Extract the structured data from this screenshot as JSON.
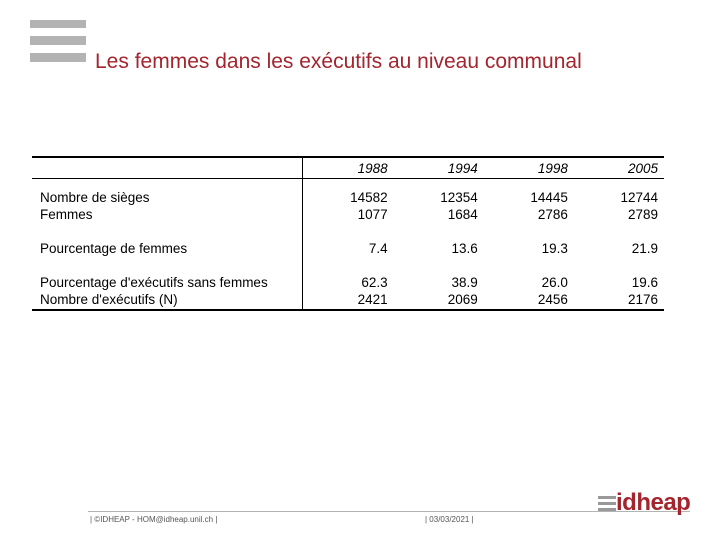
{
  "slide": {
    "title": "Les femmes dans les exécutifs au niveau communal"
  },
  "table": {
    "years": [
      "1988",
      "1994",
      "1998",
      "2005"
    ],
    "rows": [
      {
        "label": "Nombre de sièges",
        "values": [
          "14582",
          "12354",
          "14445",
          "12744"
        ]
      },
      {
        "label": "Femmes",
        "values": [
          "1077",
          "1684",
          "2786",
          "2789"
        ]
      },
      {
        "label": "Pourcentage de femmes",
        "values": [
          "7.4",
          "13.6",
          "19.3",
          "21.9"
        ]
      },
      {
        "label": "Pourcentage d'exécutifs sans femmes",
        "values": [
          "62.3",
          "38.9",
          "26.0",
          "19.6"
        ]
      },
      {
        "label": "Nombre d'exécutifs  (N)",
        "values": [
          "2421",
          "2069",
          "2456",
          "2176"
        ]
      }
    ]
  },
  "footer": {
    "left": "| ©IDHEAP - HOM@idheap.unil.ch |",
    "date": "| 03/03/2021 |",
    "brand": "idheap"
  },
  "colors": {
    "accent": "#a3252e",
    "bars": "#b3b3b3"
  }
}
